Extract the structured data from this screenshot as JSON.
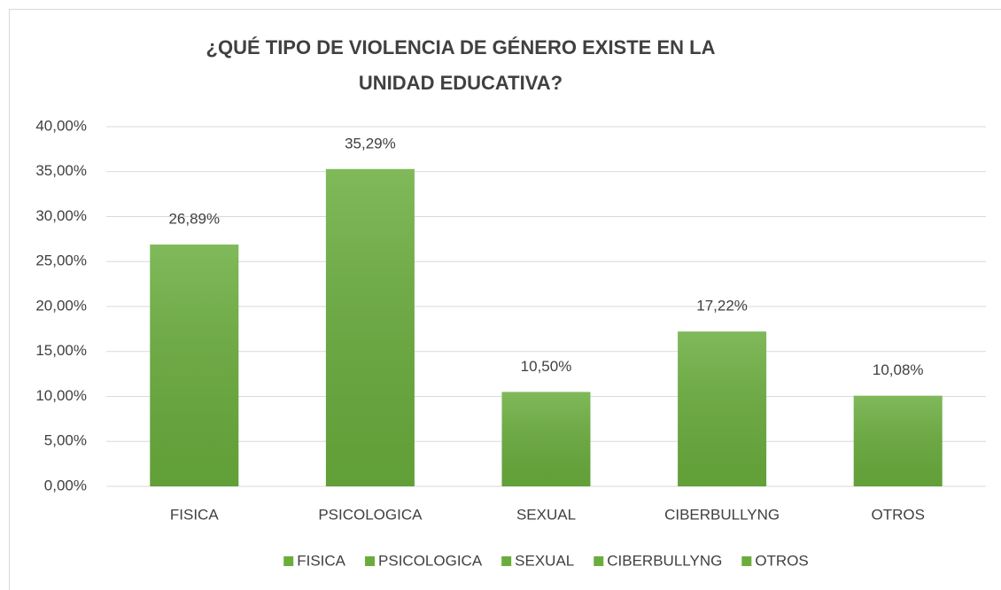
{
  "chart_data": {
    "type": "bar",
    "title": "¿QUÉ TIPO DE VIOLENCIA DE GÉNERO EXISTE EN LA UNIDAD EDUCATIVA?",
    "categories": [
      "FISICA",
      "PSICOLOGICA",
      "SEXUAL",
      "CIBERBULLYNG",
      "OTROS"
    ],
    "values": [
      26.89,
      35.29,
      10.5,
      17.22,
      10.08
    ],
    "value_labels": [
      "26,89%",
      "35,29%",
      "10,50%",
      "17,22%",
      "10,08%"
    ],
    "color": "#6aad3d",
    "ylim": [
      0,
      40
    ],
    "yticks": [
      {
        "value": 0,
        "label": "0,00%"
      },
      {
        "value": 5,
        "label": "5,00%"
      },
      {
        "value": 10,
        "label": "10,00%"
      },
      {
        "value": 15,
        "label": "15,00%"
      },
      {
        "value": 20,
        "label": "20,00%"
      },
      {
        "value": 25,
        "label": "25,00%"
      },
      {
        "value": 30,
        "label": "30,00%"
      },
      {
        "value": 35,
        "label": "35,00%"
      },
      {
        "value": 40,
        "label": "40,00%"
      }
    ],
    "grid": true,
    "legend": "bottom"
  }
}
